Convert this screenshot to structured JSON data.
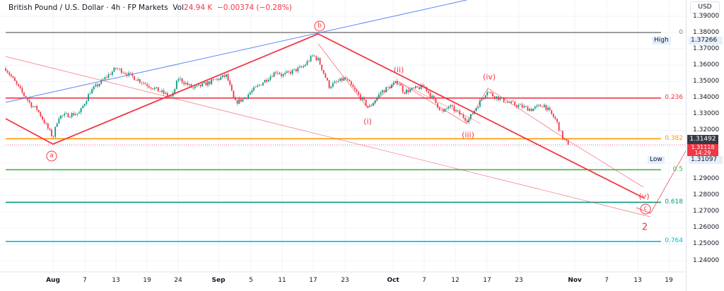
{
  "header": {
    "symbol": "British Pound / U.S. Dollar · 4h · FP Markets",
    "vol_label": "Vol",
    "vol_value": "24.94 K",
    "change": "−0.00374 (−0.28%)"
  },
  "price_axis": {
    "currency": "USD",
    "ticks": [
      "1.39000",
      "1.38000",
      "1.37000",
      "1.36000",
      "1.35000",
      "1.34000",
      "1.33000",
      "1.32000",
      "1.29000",
      "1.28000",
      "1.27000",
      "1.26000",
      "1.25000",
      "1.24000"
    ],
    "high_label": "High",
    "high_value": "1.37266",
    "low_label": "Low",
    "low_value": "1.31097",
    "prev_close": "1.31492",
    "last_price": "1.31118",
    "countdown": "14:29"
  },
  "time_axis": {
    "ticks": [
      "Aug",
      "7",
      "13",
      "19",
      "24",
      "Sep",
      "5",
      "11",
      "17",
      "23",
      "Oct",
      "7",
      "12",
      "17",
      "23",
      "Nov",
      "7",
      "13",
      "19"
    ]
  },
  "fib_levels": [
    {
      "label": "0",
      "price": 1.38,
      "color": "#888888"
    },
    {
      "label": "0.236",
      "price": 1.3398,
      "color": "#f23645"
    },
    {
      "label": "0.382",
      "price": 1.3148,
      "color": "#ff9800"
    },
    {
      "label": "0.5",
      "price": 1.2958,
      "color": "#4caf50"
    },
    {
      "label": "0.618",
      "price": 1.2758,
      "color": "#089981"
    },
    {
      "label": "0.764",
      "price": 1.2518,
      "color": "#00bcd4"
    }
  ],
  "wave_labels": {
    "a": "a",
    "b": "b",
    "c": "c",
    "i": "(i)",
    "ii": "(ii)",
    "iii": "(iii)",
    "iv": "(iv)",
    "v": "(v)",
    "two": "2"
  },
  "colors": {
    "up": "#089981",
    "down": "#f23645",
    "trend_blue": "#5b8cf5",
    "wave": "#f23645"
  },
  "chart_data": {
    "type": "candlestick",
    "title": "British Pound / U.S. Dollar · 4h · FP Markets",
    "ylim": [
      1.235,
      1.395
    ],
    "grid": true,
    "price_path": [
      [
        "07-23",
        1.358
      ],
      [
        "07-26",
        1.3436
      ],
      [
        "07-28",
        1.335
      ],
      [
        "07-29",
        1.3328
      ],
      [
        "08-01",
        1.3155
      ],
      [
        "08-02",
        1.3284
      ],
      [
        "08-06",
        1.3306
      ],
      [
        "08-08",
        1.3436
      ],
      [
        "08-13",
        1.358
      ],
      [
        "08-14",
        1.3567
      ],
      [
        "08-19",
        1.348
      ],
      [
        "08-23",
        1.34
      ],
      [
        "08-24",
        1.352
      ],
      [
        "08-27",
        1.3455
      ],
      [
        "09-02",
        1.3536
      ],
      [
        "09-03",
        1.337
      ],
      [
        "09-04",
        1.339
      ],
      [
        "09-05",
        1.3436
      ],
      [
        "09-10",
        1.3566
      ],
      [
        "09-11",
        1.3536
      ],
      [
        "09-15",
        1.3588
      ],
      [
        "09-17",
        1.366
      ],
      [
        "09-18",
        1.363
      ],
      [
        "09-20",
        1.347
      ],
      [
        "09-23",
        1.352
      ],
      [
        "09-27",
        1.3336
      ],
      [
        "09-29",
        1.3436
      ],
      [
        "10-02",
        1.35
      ],
      [
        "10-03",
        1.3436
      ],
      [
        "10-07",
        1.347
      ],
      [
        "10-10",
        1.3306
      ],
      [
        "10-11",
        1.335
      ],
      [
        "10-14",
        1.326
      ],
      [
        "10-17",
        1.3445
      ],
      [
        "10-18",
        1.3415
      ],
      [
        "10-21",
        1.337
      ],
      [
        "10-25",
        1.3328
      ],
      [
        "10-27",
        1.3358
      ],
      [
        "10-29",
        1.326
      ],
      [
        "10-30",
        1.3155
      ],
      [
        "10-31",
        1.3112
      ]
    ],
    "last": 1.31118
  }
}
